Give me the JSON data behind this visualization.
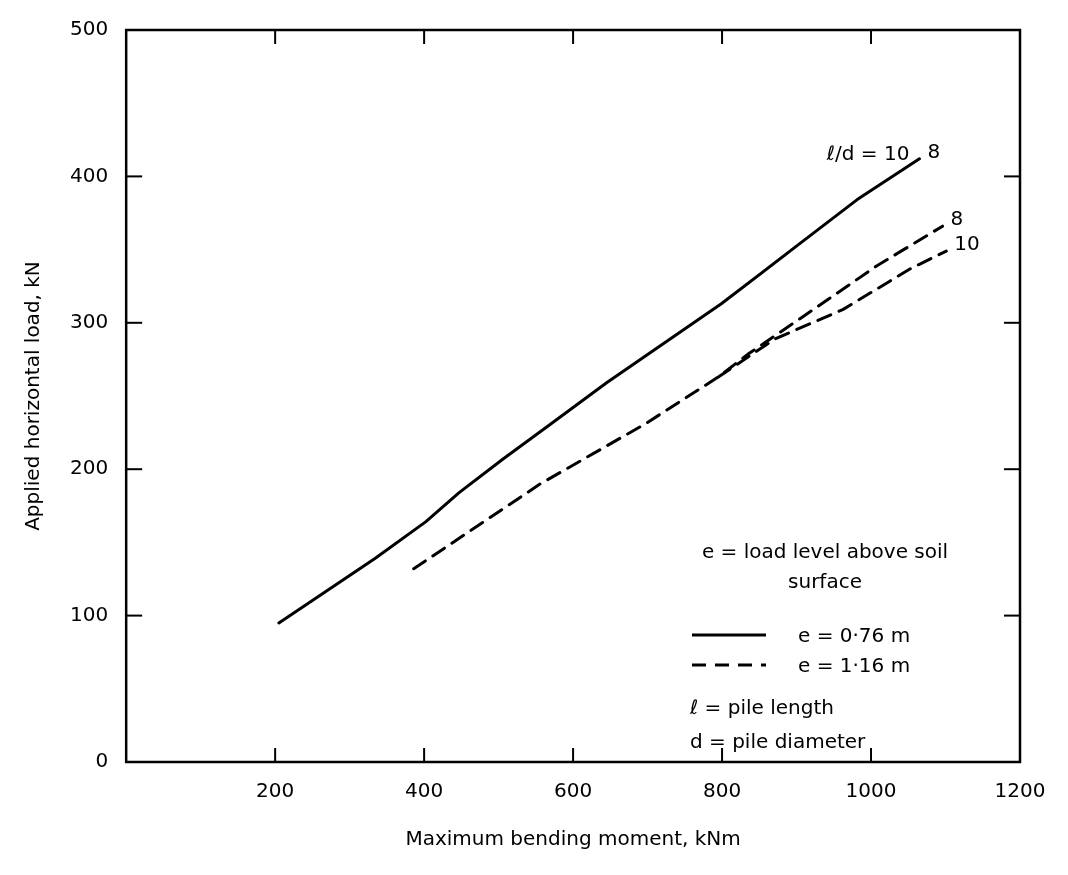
{
  "chart_data": {
    "type": "line",
    "xlabel": "Maximum bending moment, kNm",
    "ylabel": "Applied horizontal load, kN",
    "xlim": [
      0,
      1200
    ],
    "xticks": [
      200,
      400,
      600,
      800,
      1000,
      1200
    ],
    "ylim": [
      0,
      500
    ],
    "yticks": [
      0,
      100,
      200,
      300,
      400,
      500
    ],
    "grid": false,
    "legend": "bottom right",
    "marker": "none",
    "series": [
      {
        "name": "e = 0·76 m",
        "color": "#000000",
        "line_style": "solid",
        "x": [
          205,
          243,
          334,
          402,
          447,
          506,
          565,
          645,
          799,
          899,
          981,
          1065
        ],
        "values": [
          95,
          108,
          139,
          164,
          184,
          207,
          229,
          259,
          313,
          352,
          384,
          412
        ]
      },
      {
        "name": "e = 1·16 m",
        "color": "#000000",
        "line_style": "dashed",
        "x": [
          386,
          556,
          697,
          795,
          836,
          908,
          1008,
          1096
        ],
        "values": [
          132,
          190,
          231,
          263,
          279,
          304,
          339,
          366
        ]
      },
      {
        "color": "#000000",
        "line_style": "dashed",
        "x": [
          795,
          871,
          962,
          1053,
          1101
        ],
        "values": [
          263,
          289,
          309,
          337,
          349
        ]
      }
    ],
    "annotations": [
      "e = load level above soil surface",
      "ℓ = pile length",
      "d = pile diameter",
      {
        "text": "ℓ/d = 10",
        "x": 1065,
        "y": 412
      },
      {
        "text": "8",
        "x": 1065,
        "y": 412
      },
      {
        "text": "8",
        "x": 1096,
        "y": 366
      },
      {
        "text": "10",
        "x": 1101,
        "y": 349
      }
    ]
  }
}
